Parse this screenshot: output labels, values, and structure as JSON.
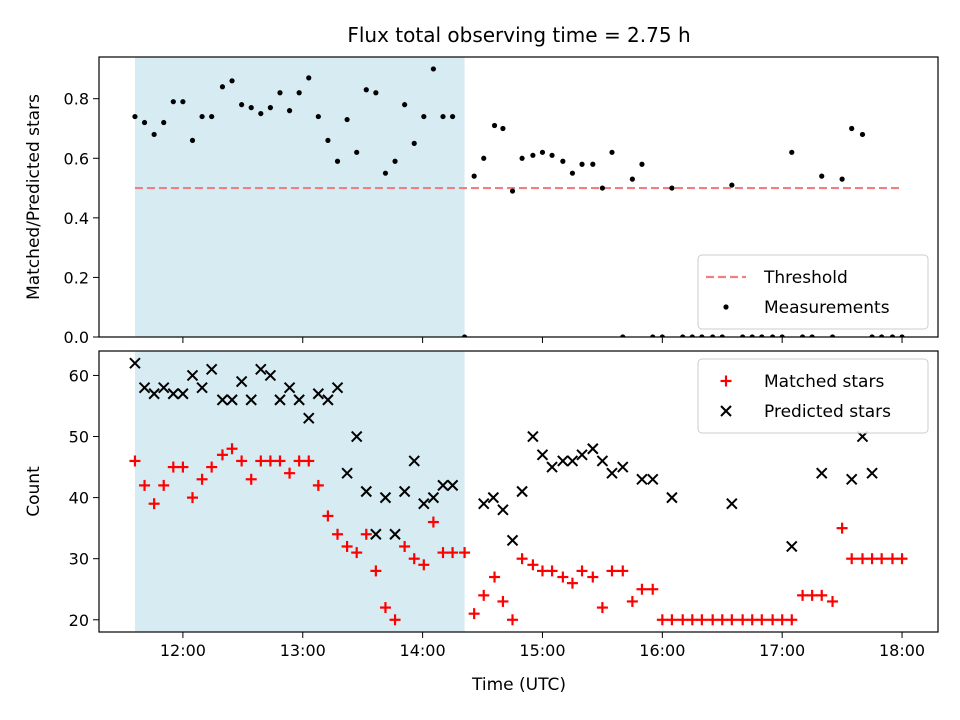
{
  "chart_data": {
    "title": "Flux total observing time = 2.75 h",
    "xlabel": "Time (UTC)",
    "xlim": [
      11.3,
      18.3
    ],
    "xticks": [
      12,
      13,
      14,
      15,
      16,
      17,
      18
    ],
    "xtick_labels": [
      "12:00",
      "13:00",
      "14:00",
      "15:00",
      "16:00",
      "17:00",
      "18:00"
    ],
    "highlight_span": [
      11.6,
      14.35
    ],
    "panels": [
      {
        "type": "scatter",
        "ylabel": "Matched/Predicted stars",
        "ylim": [
          0,
          0.94
        ],
        "yticks": [
          0.0,
          0.2,
          0.4,
          0.6,
          0.8
        ],
        "ytick_labels": [
          "0.0",
          "0.2",
          "0.4",
          "0.6",
          "0.8"
        ],
        "threshold": {
          "name": "Threshold",
          "value": 0.5,
          "xrange": [
            11.6,
            18.0
          ],
          "color": "#f08080"
        },
        "legend_position": "lower-right",
        "series": [
          {
            "name": "Measurements",
            "marker": "dot",
            "color": "#000000",
            "points": [
              [
                11.6,
                0.74
              ],
              [
                11.68,
                0.72
              ],
              [
                11.76,
                0.68
              ],
              [
                11.84,
                0.72
              ],
              [
                11.92,
                0.79
              ],
              [
                12.0,
                0.79
              ],
              [
                12.08,
                0.66
              ],
              [
                12.16,
                0.74
              ],
              [
                12.24,
                0.74
              ],
              [
                12.33,
                0.84
              ],
              [
                12.41,
                0.86
              ],
              [
                12.49,
                0.78
              ],
              [
                12.57,
                0.77
              ],
              [
                12.65,
                0.75
              ],
              [
                12.73,
                0.77
              ],
              [
                12.81,
                0.82
              ],
              [
                12.89,
                0.76
              ],
              [
                12.97,
                0.82
              ],
              [
                13.05,
                0.87
              ],
              [
                13.13,
                0.74
              ],
              [
                13.21,
                0.66
              ],
              [
                13.29,
                0.59
              ],
              [
                13.37,
                0.73
              ],
              [
                13.45,
                0.62
              ],
              [
                13.53,
                0.83
              ],
              [
                13.61,
                0.82
              ],
              [
                13.69,
                0.55
              ],
              [
                13.77,
                0.59
              ],
              [
                13.85,
                0.78
              ],
              [
                13.93,
                0.65
              ],
              [
                14.01,
                0.74
              ],
              [
                14.09,
                0.9
              ],
              [
                14.17,
                0.74
              ],
              [
                14.25,
                0.74
              ],
              [
                14.35,
                0.0
              ],
              [
                14.43,
                0.54
              ],
              [
                14.51,
                0.6
              ],
              [
                14.6,
                0.71
              ],
              [
                14.67,
                0.7
              ],
              [
                14.75,
                0.49
              ],
              [
                14.83,
                0.6
              ],
              [
                14.92,
                0.61
              ],
              [
                15.0,
                0.62
              ],
              [
                15.08,
                0.61
              ],
              [
                15.17,
                0.59
              ],
              [
                15.25,
                0.55
              ],
              [
                15.33,
                0.58
              ],
              [
                15.42,
                0.58
              ],
              [
                15.5,
                0.5
              ],
              [
                15.58,
                0.62
              ],
              [
                15.67,
                0.0
              ],
              [
                15.75,
                0.53
              ],
              [
                15.83,
                0.58
              ],
              [
                15.92,
                0.0
              ],
              [
                16.08,
                0.5
              ],
              [
                16.0,
                0.0
              ],
              [
                16.17,
                0.0
              ],
              [
                16.25,
                0.0
              ],
              [
                16.33,
                0.0
              ],
              [
                16.42,
                0.0
              ],
              [
                16.5,
                0.0
              ],
              [
                16.58,
                0.51
              ],
              [
                16.67,
                0.0
              ],
              [
                16.75,
                0.0
              ],
              [
                16.83,
                0.0
              ],
              [
                16.92,
                0.0
              ],
              [
                17.0,
                0.0
              ],
              [
                17.08,
                0.62
              ],
              [
                17.17,
                0.0
              ],
              [
                17.25,
                0.0
              ],
              [
                17.33,
                0.54
              ],
              [
                17.42,
                0.0
              ],
              [
                17.5,
                0.53
              ],
              [
                17.58,
                0.7
              ],
              [
                17.67,
                0.68
              ],
              [
                17.75,
                0.0
              ],
              [
                17.83,
                0.0
              ],
              [
                17.92,
                0.0
              ],
              [
                18.0,
                0.0
              ]
            ]
          }
        ]
      },
      {
        "type": "scatter",
        "ylabel": "Count",
        "ylim": [
          18,
          64
        ],
        "yticks": [
          20,
          30,
          40,
          50,
          60
        ],
        "ytick_labels": [
          "20",
          "30",
          "40",
          "50",
          "60"
        ],
        "legend_position": "upper-right",
        "series": [
          {
            "name": "Matched stars",
            "marker": "plus",
            "color": "#ff0000",
            "points": [
              [
                11.6,
                46
              ],
              [
                11.68,
                42
              ],
              [
                11.76,
                39
              ],
              [
                11.84,
                42
              ],
              [
                11.92,
                45
              ],
              [
                12.0,
                45
              ],
              [
                12.08,
                40
              ],
              [
                12.16,
                43
              ],
              [
                12.24,
                45
              ],
              [
                12.33,
                47
              ],
              [
                12.41,
                48
              ],
              [
                12.49,
                46
              ],
              [
                12.57,
                43
              ],
              [
                12.65,
                46
              ],
              [
                12.73,
                46
              ],
              [
                12.81,
                46
              ],
              [
                12.89,
                44
              ],
              [
                12.97,
                46
              ],
              [
                13.05,
                46
              ],
              [
                13.13,
                42
              ],
              [
                13.21,
                37
              ],
              [
                13.29,
                34
              ],
              [
                13.37,
                32
              ],
              [
                13.45,
                31
              ],
              [
                13.53,
                34
              ],
              [
                13.61,
                28
              ],
              [
                13.69,
                22
              ],
              [
                13.77,
                20
              ],
              [
                13.85,
                32
              ],
              [
                13.93,
                30
              ],
              [
                14.01,
                29
              ],
              [
                14.09,
                36
              ],
              [
                14.17,
                31
              ],
              [
                14.25,
                31
              ],
              [
                14.35,
                31
              ],
              [
                14.43,
                21
              ],
              [
                14.51,
                24
              ],
              [
                14.6,
                27
              ],
              [
                14.67,
                23
              ],
              [
                14.75,
                20
              ],
              [
                14.83,
                30
              ],
              [
                14.92,
                29
              ],
              [
                15.0,
                28
              ],
              [
                15.08,
                28
              ],
              [
                15.17,
                27
              ],
              [
                15.25,
                26
              ],
              [
                15.33,
                28
              ],
              [
                15.42,
                27
              ],
              [
                15.5,
                22
              ],
              [
                15.58,
                28
              ],
              [
                15.67,
                28
              ],
              [
                15.75,
                23
              ],
              [
                15.83,
                25
              ],
              [
                15.92,
                25
              ],
              [
                16.0,
                20
              ],
              [
                16.08,
                20
              ],
              [
                16.17,
                20
              ],
              [
                16.25,
                20
              ],
              [
                16.33,
                20
              ],
              [
                16.42,
                20
              ],
              [
                16.5,
                20
              ],
              [
                16.58,
                20
              ],
              [
                16.67,
                20
              ],
              [
                16.75,
                20
              ],
              [
                16.83,
                20
              ],
              [
                16.92,
                20
              ],
              [
                17.0,
                20
              ],
              [
                17.08,
                20
              ],
              [
                17.17,
                24
              ],
              [
                17.25,
                24
              ],
              [
                17.33,
                24
              ],
              [
                17.42,
                23
              ],
              [
                17.5,
                35
              ],
              [
                17.58,
                30
              ],
              [
                17.67,
                30
              ],
              [
                17.75,
                30
              ],
              [
                17.83,
                30
              ],
              [
                17.92,
                30
              ],
              [
                18.0,
                30
              ]
            ]
          },
          {
            "name": "Predicted stars",
            "marker": "x",
            "color": "#000000",
            "points": [
              [
                11.6,
                62
              ],
              [
                11.68,
                58
              ],
              [
                11.76,
                57
              ],
              [
                11.84,
                58
              ],
              [
                11.92,
                57
              ],
              [
                12.0,
                57
              ],
              [
                12.08,
                60
              ],
              [
                12.16,
                58
              ],
              [
                12.24,
                61
              ],
              [
                12.33,
                56
              ],
              [
                12.41,
                56
              ],
              [
                12.49,
                59
              ],
              [
                12.57,
                56
              ],
              [
                12.65,
                61
              ],
              [
                12.73,
                60
              ],
              [
                12.81,
                56
              ],
              [
                12.89,
                58
              ],
              [
                12.97,
                56
              ],
              [
                13.05,
                53
              ],
              [
                13.13,
                57
              ],
              [
                13.21,
                56
              ],
              [
                13.29,
                58
              ],
              [
                13.37,
                44
              ],
              [
                13.45,
                50
              ],
              [
                13.53,
                41
              ],
              [
                13.61,
                34
              ],
              [
                13.69,
                40
              ],
              [
                13.77,
                34
              ],
              [
                13.85,
                41
              ],
              [
                13.93,
                46
              ],
              [
                14.01,
                39
              ],
              [
                14.09,
                40
              ],
              [
                14.17,
                42
              ],
              [
                14.25,
                42
              ],
              [
                14.51,
                39
              ],
              [
                14.59,
                40
              ],
              [
                14.67,
                38
              ],
              [
                14.75,
                33
              ],
              [
                14.83,
                41
              ],
              [
                14.92,
                50
              ],
              [
                15.0,
                47
              ],
              [
                15.08,
                45
              ],
              [
                15.17,
                46
              ],
              [
                15.25,
                46
              ],
              [
                15.33,
                47
              ],
              [
                15.42,
                48
              ],
              [
                15.5,
                46
              ],
              [
                15.58,
                44
              ],
              [
                15.67,
                45
              ],
              [
                15.83,
                43
              ],
              [
                15.92,
                43
              ],
              [
                16.08,
                40
              ],
              [
                16.58,
                39
              ],
              [
                17.08,
                32
              ],
              [
                17.33,
                44
              ],
              [
                17.58,
                43
              ],
              [
                17.67,
                50
              ],
              [
                17.75,
                44
              ]
            ]
          }
        ]
      }
    ]
  }
}
